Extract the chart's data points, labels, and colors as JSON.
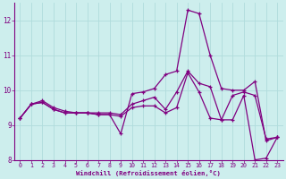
{
  "xlabel": "Windchill (Refroidissement éolien,°C)",
  "background_color": "#cdeeed",
  "grid_color": "#b0dcdc",
  "line_color": "#800080",
  "x": [
    0,
    1,
    2,
    3,
    4,
    5,
    6,
    7,
    8,
    9,
    10,
    11,
    12,
    13,
    14,
    15,
    16,
    17,
    18,
    19,
    20,
    21,
    22,
    23
  ],
  "line1": [
    9.2,
    9.6,
    9.7,
    9.5,
    9.4,
    9.35,
    9.35,
    9.3,
    9.3,
    8.75,
    9.9,
    9.95,
    10.05,
    10.45,
    10.55,
    12.3,
    12.2,
    11.0,
    10.05,
    10.0,
    10.0,
    10.25,
    8.55,
    8.65
  ],
  "line2": [
    9.2,
    9.6,
    9.65,
    9.45,
    9.35,
    9.35,
    9.35,
    9.35,
    9.35,
    9.3,
    9.6,
    9.7,
    9.8,
    9.45,
    9.95,
    10.55,
    10.2,
    10.1,
    9.15,
    9.85,
    9.95,
    9.85,
    8.6,
    8.65
  ],
  "line3": [
    9.2,
    9.6,
    9.65,
    9.45,
    9.35,
    9.35,
    9.35,
    9.3,
    9.3,
    9.25,
    9.5,
    9.55,
    9.55,
    9.35,
    9.5,
    10.5,
    9.95,
    9.2,
    9.15,
    9.15,
    9.85,
    8.0,
    8.05,
    8.65
  ],
  "ylim": [
    8,
    12.5
  ],
  "xlim": [
    -0.5,
    23.5
  ],
  "yticks": [
    8,
    9,
    10,
    11,
    12
  ],
  "xtick_labels": [
    "0",
    "1",
    "2",
    "3",
    "4",
    "5",
    "6",
    "7",
    "8",
    "9",
    "10",
    "11",
    "12",
    "13",
    "14",
    "15",
    "16",
    "17",
    "18",
    "19",
    "20",
    "21",
    "22",
    "23"
  ]
}
